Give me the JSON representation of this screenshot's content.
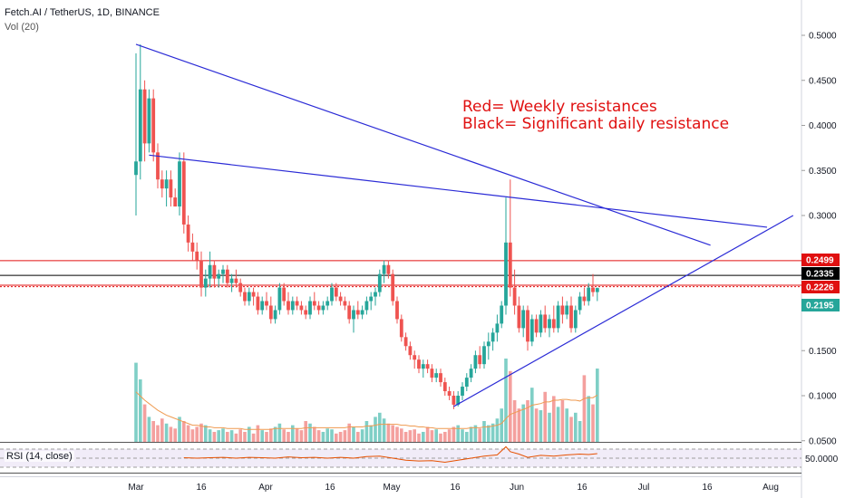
{
  "header": {
    "symbol": "Fetch.AI / TetherUS, 1D, BINANCE",
    "volume_label": "Vol (20)"
  },
  "annotation": {
    "line1": "Red= Weekly resistances",
    "line2": "Black= Significant daily resistance"
  },
  "rsi": {
    "label": "RSI (14, close)",
    "tick": "50.0000"
  },
  "colors": {
    "up": "#26a69a",
    "down": "#ef5350",
    "trend": "#2b2bd6",
    "weekly_resistance": "#e01010",
    "daily_resistance": "#000000",
    "ma": "#ef9a50"
  },
  "chart_data": {
    "type": "candlestick",
    "y_ticks": [
      "0.5000",
      "0.4500",
      "0.4000",
      "0.3500",
      "0.3000",
      "0.2500",
      "0.2000",
      "0.1500",
      "0.1000",
      "0.0500"
    ],
    "x_ticks": [
      "Mar",
      "16",
      "Apr",
      "16",
      "May",
      "16",
      "Jun",
      "16",
      "Jul",
      "16",
      "Aug"
    ],
    "price_badges": [
      {
        "text": "0.2499",
        "value": 0.2499,
        "color": "#e01010"
      },
      {
        "text": "0.2335",
        "value": 0.2335,
        "color": "#000000"
      },
      {
        "text": "0.2226",
        "value": 0.2226,
        "color": "#e01010"
      },
      {
        "text": "0.2195",
        "value": 0.2195,
        "color": "#26a69a"
      }
    ],
    "horizontal_lines": [
      {
        "value": 0.2499,
        "color": "weekly",
        "style": "solid"
      },
      {
        "value": 0.2335,
        "color": "daily",
        "style": "solid"
      },
      {
        "value": 0.2226,
        "color": "weekly",
        "style": "solid"
      },
      {
        "value": 0.221,
        "color": "weekly",
        "style": "dotted"
      }
    ],
    "trendlines": [
      {
        "from": {
          "x": 0,
          "y": 0.49
        },
        "to": {
          "x": 132,
          "y": 0.267
        }
      },
      {
        "from": {
          "x": 3,
          "y": 0.367
        },
        "to": {
          "x": 145,
          "y": 0.287
        }
      },
      {
        "from": {
          "x": 73,
          "y": 0.088
        },
        "to": {
          "x": 151,
          "y": 0.3
        }
      }
    ],
    "ohlc_note": "x = day index from Mar 1 (Mar 1 = 0)",
    "ohlc": [
      [
        0,
        0.345,
        0.48,
        0.3,
        0.36
      ],
      [
        1,
        0.36,
        0.49,
        0.34,
        0.44
      ],
      [
        2,
        0.44,
        0.45,
        0.36,
        0.38
      ],
      [
        3,
        0.38,
        0.44,
        0.37,
        0.43
      ],
      [
        4,
        0.43,
        0.44,
        0.36,
        0.37
      ],
      [
        5,
        0.37,
        0.38,
        0.33,
        0.34
      ],
      [
        6,
        0.34,
        0.35,
        0.32,
        0.33
      ],
      [
        7,
        0.33,
        0.35,
        0.31,
        0.34
      ],
      [
        8,
        0.34,
        0.35,
        0.31,
        0.32
      ],
      [
        9,
        0.32,
        0.33,
        0.31,
        0.31
      ],
      [
        10,
        0.31,
        0.37,
        0.3,
        0.36
      ],
      [
        11,
        0.36,
        0.37,
        0.28,
        0.29
      ],
      [
        12,
        0.29,
        0.3,
        0.26,
        0.27
      ],
      [
        13,
        0.27,
        0.28,
        0.25,
        0.26
      ],
      [
        14,
        0.26,
        0.27,
        0.24,
        0.25
      ],
      [
        15,
        0.25,
        0.26,
        0.21,
        0.22
      ],
      [
        16,
        0.22,
        0.24,
        0.21,
        0.23
      ],
      [
        17,
        0.23,
        0.26,
        0.22,
        0.245
      ],
      [
        18,
        0.245,
        0.25,
        0.22,
        0.23
      ],
      [
        19,
        0.23,
        0.24,
        0.22,
        0.235
      ],
      [
        20,
        0.235,
        0.245,
        0.225,
        0.24
      ],
      [
        21,
        0.24,
        0.245,
        0.22,
        0.225
      ],
      [
        22,
        0.225,
        0.235,
        0.215,
        0.23
      ],
      [
        23,
        0.23,
        0.24,
        0.22,
        0.225
      ],
      [
        24,
        0.225,
        0.23,
        0.21,
        0.215
      ],
      [
        25,
        0.215,
        0.22,
        0.2,
        0.205
      ],
      [
        26,
        0.205,
        0.22,
        0.2,
        0.215
      ],
      [
        27,
        0.215,
        0.22,
        0.2,
        0.21
      ],
      [
        28,
        0.21,
        0.215,
        0.19,
        0.195
      ],
      [
        29,
        0.195,
        0.21,
        0.19,
        0.205
      ],
      [
        30,
        0.205,
        0.215,
        0.195,
        0.2
      ],
      [
        31,
        0.2,
        0.21,
        0.18,
        0.185
      ],
      [
        32,
        0.185,
        0.2,
        0.18,
        0.195
      ],
      [
        33,
        0.195,
        0.225,
        0.19,
        0.22
      ],
      [
        34,
        0.22,
        0.225,
        0.2,
        0.205
      ],
      [
        35,
        0.205,
        0.215,
        0.19,
        0.195
      ],
      [
        36,
        0.195,
        0.21,
        0.19,
        0.205
      ],
      [
        37,
        0.205,
        0.21,
        0.195,
        0.2
      ],
      [
        38,
        0.2,
        0.205,
        0.19,
        0.195
      ],
      [
        39,
        0.195,
        0.2,
        0.185,
        0.19
      ],
      [
        40,
        0.19,
        0.21,
        0.185,
        0.205
      ],
      [
        41,
        0.205,
        0.215,
        0.195,
        0.2
      ],
      [
        42,
        0.2,
        0.205,
        0.19,
        0.195
      ],
      [
        43,
        0.195,
        0.205,
        0.19,
        0.2
      ],
      [
        44,
        0.2,
        0.21,
        0.195,
        0.205
      ],
      [
        45,
        0.205,
        0.225,
        0.2,
        0.22
      ],
      [
        46,
        0.22,
        0.225,
        0.205,
        0.21
      ],
      [
        47,
        0.21,
        0.215,
        0.2,
        0.205
      ],
      [
        48,
        0.205,
        0.21,
        0.195,
        0.2
      ],
      [
        49,
        0.2,
        0.205,
        0.18,
        0.185
      ],
      [
        50,
        0.185,
        0.2,
        0.17,
        0.195
      ],
      [
        51,
        0.195,
        0.205,
        0.185,
        0.19
      ],
      [
        52,
        0.19,
        0.2,
        0.185,
        0.195
      ],
      [
        53,
        0.195,
        0.21,
        0.19,
        0.205
      ],
      [
        54,
        0.205,
        0.215,
        0.195,
        0.21
      ],
      [
        55,
        0.21,
        0.22,
        0.2,
        0.215
      ],
      [
        56,
        0.215,
        0.24,
        0.21,
        0.235
      ],
      [
        57,
        0.235,
        0.25,
        0.225,
        0.245
      ],
      [
        58,
        0.245,
        0.25,
        0.23,
        0.235
      ],
      [
        59,
        0.235,
        0.24,
        0.2,
        0.205
      ],
      [
        60,
        0.205,
        0.21,
        0.18,
        0.185
      ],
      [
        61,
        0.185,
        0.19,
        0.16,
        0.165
      ],
      [
        62,
        0.165,
        0.17,
        0.15,
        0.155
      ],
      [
        63,
        0.155,
        0.16,
        0.14,
        0.145
      ],
      [
        64,
        0.145,
        0.15,
        0.13,
        0.14
      ],
      [
        65,
        0.14,
        0.145,
        0.125,
        0.13
      ],
      [
        66,
        0.13,
        0.14,
        0.12,
        0.135
      ],
      [
        67,
        0.135,
        0.14,
        0.125,
        0.13
      ],
      [
        68,
        0.13,
        0.135,
        0.115,
        0.12
      ],
      [
        69,
        0.12,
        0.13,
        0.115,
        0.125
      ],
      [
        70,
        0.125,
        0.13,
        0.11,
        0.115
      ],
      [
        71,
        0.115,
        0.12,
        0.1,
        0.105
      ],
      [
        72,
        0.105,
        0.11,
        0.095,
        0.1
      ],
      [
        73,
        0.1,
        0.105,
        0.085,
        0.09
      ],
      [
        74,
        0.09,
        0.105,
        0.088,
        0.1
      ],
      [
        75,
        0.1,
        0.115,
        0.095,
        0.11
      ],
      [
        76,
        0.11,
        0.125,
        0.105,
        0.12
      ],
      [
        77,
        0.12,
        0.135,
        0.115,
        0.13
      ],
      [
        78,
        0.13,
        0.15,
        0.125,
        0.145
      ],
      [
        79,
        0.145,
        0.155,
        0.13,
        0.135
      ],
      [
        80,
        0.135,
        0.16,
        0.13,
        0.155
      ],
      [
        81,
        0.155,
        0.17,
        0.14,
        0.16
      ],
      [
        82,
        0.16,
        0.175,
        0.15,
        0.17
      ],
      [
        83,
        0.17,
        0.19,
        0.16,
        0.18
      ],
      [
        84,
        0.18,
        0.205,
        0.175,
        0.2
      ],
      [
        85,
        0.2,
        0.32,
        0.19,
        0.27
      ],
      [
        86,
        0.27,
        0.34,
        0.21,
        0.22
      ],
      [
        87,
        0.22,
        0.24,
        0.19,
        0.2
      ],
      [
        88,
        0.2,
        0.21,
        0.17,
        0.175
      ],
      [
        89,
        0.175,
        0.2,
        0.165,
        0.195
      ],
      [
        90,
        0.195,
        0.2,
        0.15,
        0.16
      ],
      [
        91,
        0.16,
        0.19,
        0.155,
        0.185
      ],
      [
        92,
        0.185,
        0.19,
        0.165,
        0.17
      ],
      [
        93,
        0.17,
        0.195,
        0.165,
        0.19
      ],
      [
        94,
        0.19,
        0.2,
        0.17,
        0.175
      ],
      [
        95,
        0.175,
        0.19,
        0.165,
        0.185
      ],
      [
        96,
        0.185,
        0.2,
        0.17,
        0.175
      ],
      [
        97,
        0.175,
        0.205,
        0.17,
        0.2
      ],
      [
        98,
        0.2,
        0.21,
        0.18,
        0.19
      ],
      [
        99,
        0.19,
        0.205,
        0.185,
        0.2
      ],
      [
        100,
        0.2,
        0.21,
        0.17,
        0.175
      ],
      [
        101,
        0.175,
        0.2,
        0.17,
        0.195
      ],
      [
        102,
        0.195,
        0.215,
        0.19,
        0.21
      ],
      [
        103,
        0.21,
        0.22,
        0.2,
        0.205
      ],
      [
        104,
        0.205,
        0.225,
        0.2,
        0.22
      ],
      [
        105,
        0.22,
        0.235,
        0.21,
        0.215
      ],
      [
        106,
        0.215,
        0.22,
        0.205,
        0.2195
      ]
    ],
    "volume": [
      0.95,
      0.75,
      0.45,
      0.3,
      0.25,
      0.2,
      0.28,
      0.22,
      0.18,
      0.16,
      0.3,
      0.25,
      0.2,
      0.15,
      0.18,
      0.22,
      0.2,
      0.15,
      0.12,
      0.14,
      0.16,
      0.12,
      0.14,
      0.1,
      0.15,
      0.12,
      0.18,
      0.1,
      0.2,
      0.14,
      0.12,
      0.16,
      0.18,
      0.22,
      0.15,
      0.12,
      0.2,
      0.16,
      0.14,
      0.25,
      0.22,
      0.18,
      0.14,
      0.12,
      0.16,
      0.15,
      0.1,
      0.12,
      0.14,
      0.22,
      0.18,
      0.12,
      0.15,
      0.25,
      0.2,
      0.3,
      0.35,
      0.28,
      0.22,
      0.2,
      0.18,
      0.16,
      0.12,
      0.14,
      0.15,
      0.1,
      0.12,
      0.18,
      0.14,
      0.15,
      0.1,
      0.12,
      0.15,
      0.18,
      0.2,
      0.15,
      0.12,
      0.18,
      0.2,
      0.16,
      0.25,
      0.2,
      0.22,
      0.28,
      0.4,
      1.0,
      0.85,
      0.5,
      0.4,
      0.45,
      0.5,
      0.65,
      0.4,
      0.38,
      0.6,
      0.35,
      0.55,
      0.42,
      0.5,
      0.4,
      0.3,
      0.35,
      0.25,
      0.8,
      0.55,
      0.45,
      0.88
    ],
    "volume_ma": [
      0.6,
      0.55,
      0.5,
      0.46,
      0.42,
      0.38,
      0.35,
      0.32,
      0.3,
      0.28,
      0.26,
      0.24,
      0.22,
      0.2,
      0.2,
      0.19,
      0.18,
      0.18,
      0.17,
      0.17,
      0.17,
      0.16,
      0.16,
      0.16,
      0.16,
      0.15,
      0.15,
      0.15,
      0.15,
      0.15,
      0.15,
      0.15,
      0.16,
      0.16,
      0.16,
      0.16,
      0.16,
      0.16,
      0.16,
      0.17,
      0.17,
      0.17,
      0.17,
      0.17,
      0.17,
      0.17,
      0.17,
      0.17,
      0.17,
      0.18,
      0.18,
      0.18,
      0.18,
      0.19,
      0.19,
      0.2,
      0.21,
      0.21,
      0.21,
      0.21,
      0.21,
      0.2,
      0.2,
      0.19,
      0.19,
      0.18,
      0.18,
      0.17,
      0.17,
      0.16,
      0.16,
      0.16,
      0.16,
      0.16,
      0.16,
      0.16,
      0.16,
      0.17,
      0.17,
      0.17,
      0.18,
      0.18,
      0.19,
      0.2,
      0.22,
      0.28,
      0.33,
      0.35,
      0.37,
      0.39,
      0.41,
      0.44,
      0.45,
      0.46,
      0.48,
      0.48,
      0.5,
      0.5,
      0.51,
      0.51,
      0.5,
      0.5,
      0.49,
      0.52,
      0.53,
      0.53,
      0.56
    ],
    "rsi_values_note": "RSI series shown as an orange line",
    "rsi_values": [
      [
        11,
        51
      ],
      [
        14,
        50
      ],
      [
        17,
        51
      ],
      [
        20,
        52
      ],
      [
        23,
        50
      ],
      [
        26,
        52
      ],
      [
        29,
        51
      ],
      [
        32,
        50
      ],
      [
        35,
        53
      ],
      [
        38,
        51
      ],
      [
        41,
        52
      ],
      [
        44,
        50
      ],
      [
        47,
        52
      ],
      [
        50,
        50
      ],
      [
        53,
        54
      ],
      [
        56,
        55
      ],
      [
        59,
        50
      ],
      [
        62,
        45
      ],
      [
        65,
        43
      ],
      [
        68,
        44
      ],
      [
        71,
        40
      ],
      [
        74,
        45
      ],
      [
        77,
        50
      ],
      [
        80,
        55
      ],
      [
        83,
        58
      ],
      [
        85,
        78
      ],
      [
        86,
        66
      ],
      [
        88,
        60
      ],
      [
        90,
        52
      ],
      [
        93,
        57
      ],
      [
        96,
        55
      ],
      [
        99,
        58
      ],
      [
        102,
        60
      ],
      [
        104,
        59
      ],
      [
        106,
        61
      ]
    ]
  }
}
